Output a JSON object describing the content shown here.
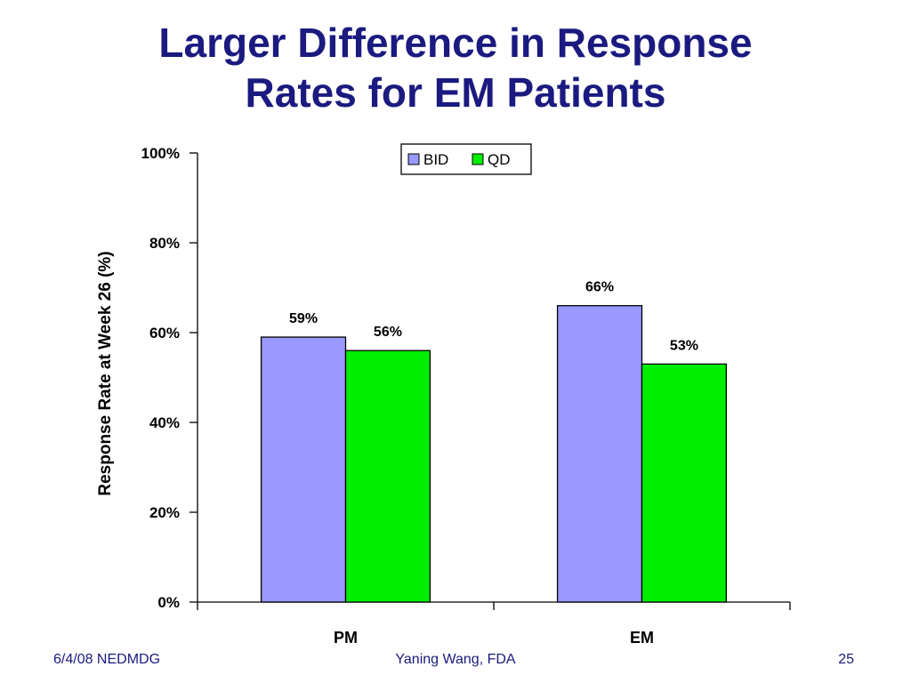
{
  "slide": {
    "title_line1": "Larger Difference in Response",
    "title_line2": "Rates for EM Patients",
    "footer_left": "6/4/08 NEDMDG",
    "footer_center": "Yaning Wang, FDA",
    "footer_right": "25"
  },
  "chart_data": {
    "type": "bar",
    "ylabel": "Response Rate at Week 26 (%)",
    "xlabel": "",
    "categories": [
      "PM",
      "EM"
    ],
    "series": [
      {
        "name": "BID",
        "values": [
          59,
          66
        ],
        "labels": [
          "59%",
          "66%"
        ],
        "color": "#9999ff"
      },
      {
        "name": "QD",
        "values": [
          56,
          53
        ],
        "labels": [
          "56%",
          "53%"
        ],
        "color": "#00ee00"
      }
    ],
    "ylim": [
      0,
      100
    ],
    "yticks": [
      0,
      20,
      40,
      60,
      80,
      100
    ],
    "ytick_labels": [
      "0%",
      "20%",
      "40%",
      "60%",
      "80%",
      "100%"
    ],
    "grid": false,
    "legend_position": "top-center"
  }
}
